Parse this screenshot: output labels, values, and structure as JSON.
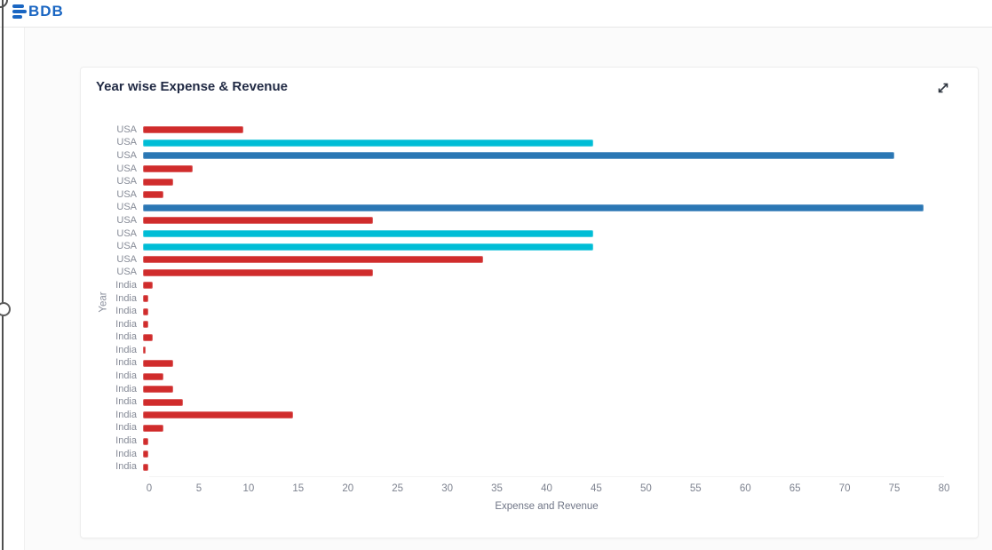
{
  "header": {
    "logo_text": "BDB"
  },
  "card": {
    "title": "Year wise Expense & Revenue",
    "expand_icon": "expand-arrows-icon"
  },
  "chart_data": {
    "type": "bar",
    "orientation": "horizontal",
    "title": "Year wise Expense & Revenue",
    "xlabel": "Expense and Revenue",
    "ylabel": "Year",
    "xlim": [
      0,
      80
    ],
    "xticks": [
      0,
      5,
      10,
      15,
      20,
      25,
      30,
      35,
      40,
      45,
      50,
      55,
      60,
      65,
      70,
      75,
      80
    ],
    "grid": false,
    "legend": "none",
    "colors": {
      "red": "#d02c2c",
      "cyan": "#00bdd6",
      "blue": "#2b77b4"
    },
    "bars": [
      {
        "label": "USA",
        "value": 10,
        "color": "red"
      },
      {
        "label": "USA",
        "value": 45,
        "color": "cyan"
      },
      {
        "label": "USA",
        "value": 75,
        "color": "blue"
      },
      {
        "label": "USA",
        "value": 5,
        "color": "red"
      },
      {
        "label": "USA",
        "value": 3,
        "color": "red"
      },
      {
        "label": "USA",
        "value": 2,
        "color": "red"
      },
      {
        "label": "USA",
        "value": 78,
        "color": "blue"
      },
      {
        "label": "USA",
        "value": 23,
        "color": "red"
      },
      {
        "label": "USA",
        "value": 45,
        "color": "cyan"
      },
      {
        "label": "USA",
        "value": 45,
        "color": "cyan"
      },
      {
        "label": "USA",
        "value": 34,
        "color": "red"
      },
      {
        "label": "USA",
        "value": 23,
        "color": "red"
      },
      {
        "label": "India",
        "value": 1,
        "color": "red"
      },
      {
        "label": "India",
        "value": 0.5,
        "color": "red"
      },
      {
        "label": "India",
        "value": 0.5,
        "color": "red"
      },
      {
        "label": "India",
        "value": 0.5,
        "color": "red"
      },
      {
        "label": "India",
        "value": 1,
        "color": "red"
      },
      {
        "label": "India",
        "value": 0.3,
        "color": "red"
      },
      {
        "label": "India",
        "value": 3,
        "color": "red"
      },
      {
        "label": "India",
        "value": 2,
        "color": "red"
      },
      {
        "label": "India",
        "value": 3,
        "color": "red"
      },
      {
        "label": "India",
        "value": 4,
        "color": "red"
      },
      {
        "label": "India",
        "value": 15,
        "color": "red"
      },
      {
        "label": "India",
        "value": 2,
        "color": "red"
      },
      {
        "label": "India",
        "value": 0.5,
        "color": "red"
      },
      {
        "label": "India",
        "value": 0.5,
        "color": "red"
      },
      {
        "label": "India",
        "value": 0.5,
        "color": "red"
      }
    ]
  }
}
